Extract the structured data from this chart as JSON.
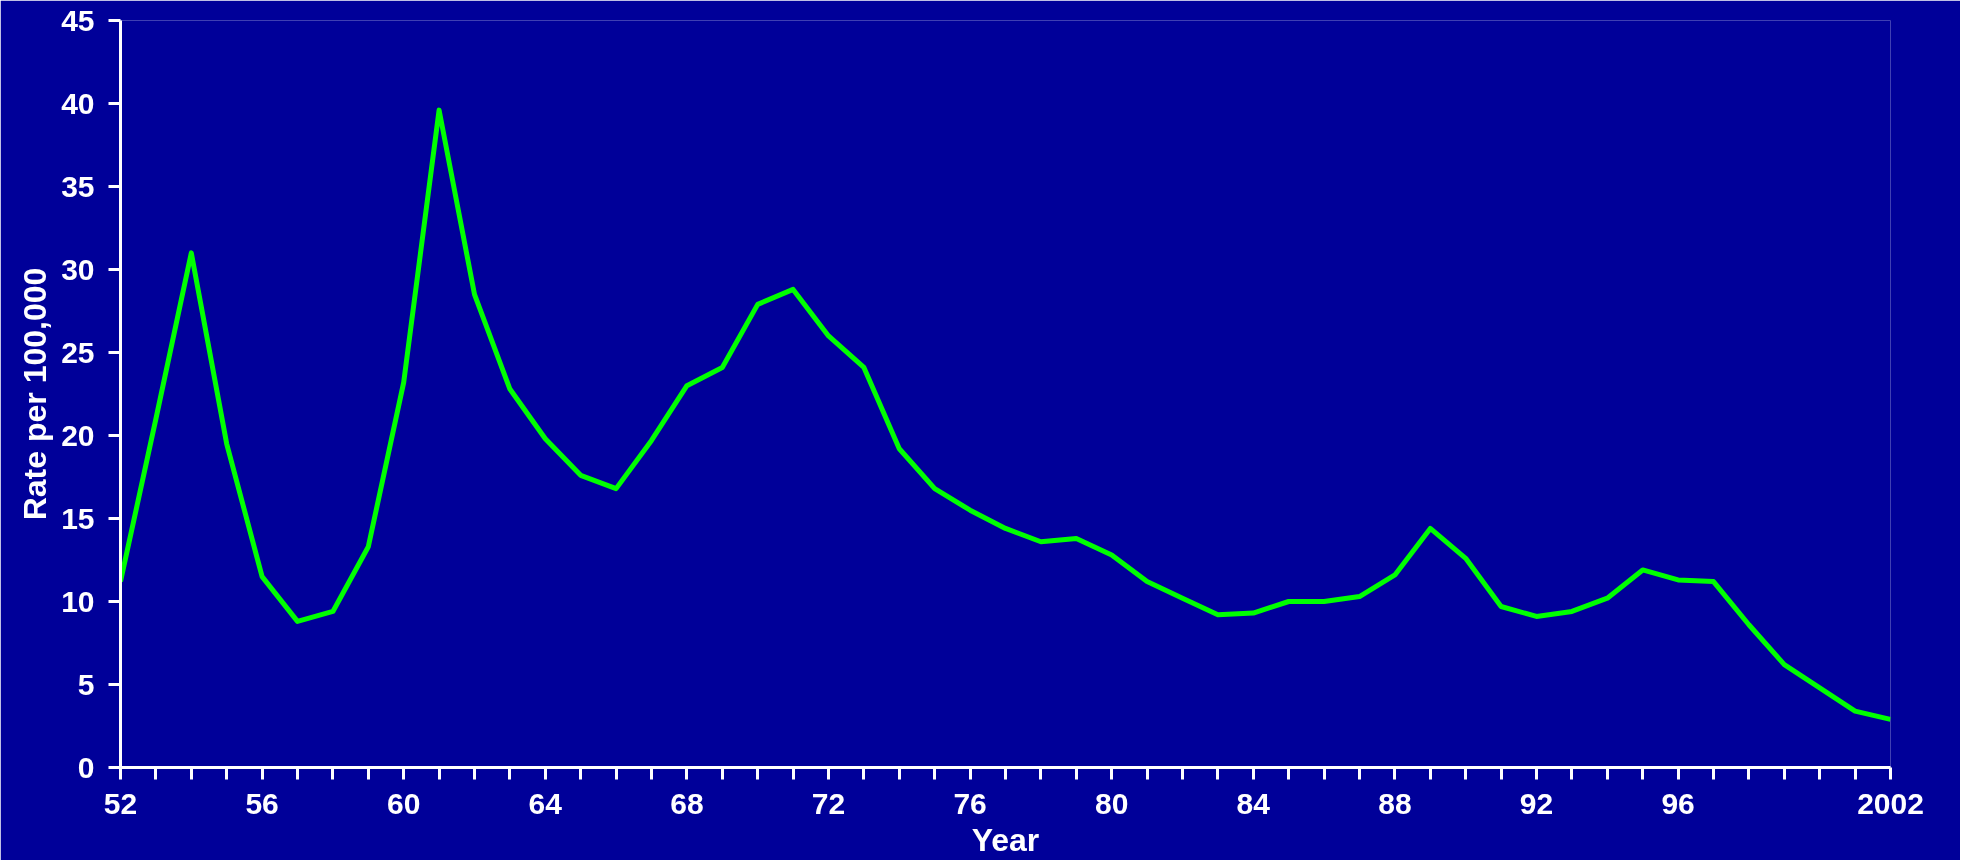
{
  "chart_data": {
    "type": "line",
    "xlabel": "Year",
    "ylabel": "Rate per 100,000",
    "x": [
      1952,
      1953,
      1954,
      1955,
      1956,
      1957,
      1958,
      1959,
      1960,
      1961,
      1962,
      1963,
      1964,
      1965,
      1966,
      1967,
      1968,
      1969,
      1970,
      1971,
      1972,
      1973,
      1974,
      1975,
      1976,
      1977,
      1978,
      1979,
      1980,
      1981,
      1982,
      1983,
      1984,
      1985,
      1986,
      1987,
      1988,
      1989,
      1990,
      1991,
      1992,
      1993,
      1994,
      1995,
      1996,
      1997,
      1998,
      1999,
      2000,
      2001,
      2002
    ],
    "series": [
      {
        "color": "#00ff00",
        "values": [
          11.2,
          21,
          31,
          19.5,
          11.5,
          8.8,
          9.4,
          13.3,
          23.2,
          39.6,
          28.5,
          22.8,
          19.8,
          17.6,
          16.8,
          19.7,
          23,
          24.1,
          27.9,
          28.8,
          26,
          24.1,
          19.2,
          16.8,
          15.5,
          14.4,
          13.6,
          13.8,
          12.8,
          11.2,
          10.2,
          9.2,
          9.3,
          10,
          10,
          10.3,
          11.6,
          14.4,
          12.6,
          9.7,
          9.1,
          9.4,
          10.2,
          11.9,
          11.3,
          11.2,
          8.6,
          6.2,
          4.8,
          3.4,
          2.9
        ]
      }
    ],
    "xlim": [
      1952,
      2002
    ],
    "xticks": [
      {
        "value": 1952,
        "label": "52"
      },
      {
        "value": 1953,
        "label": null
      },
      {
        "value": 1954,
        "label": null
      },
      {
        "value": 1955,
        "label": null
      },
      {
        "value": 1956,
        "label": "56"
      },
      {
        "value": 1957,
        "label": null
      },
      {
        "value": 1958,
        "label": null
      },
      {
        "value": 1959,
        "label": null
      },
      {
        "value": 1960,
        "label": "60"
      },
      {
        "value": 1961,
        "label": null
      },
      {
        "value": 1962,
        "label": null
      },
      {
        "value": 1963,
        "label": null
      },
      {
        "value": 1964,
        "label": "64"
      },
      {
        "value": 1965,
        "label": null
      },
      {
        "value": 1966,
        "label": null
      },
      {
        "value": 1967,
        "label": null
      },
      {
        "value": 1968,
        "label": "68"
      },
      {
        "value": 1969,
        "label": null
      },
      {
        "value": 1970,
        "label": null
      },
      {
        "value": 1971,
        "label": null
      },
      {
        "value": 1972,
        "label": "72"
      },
      {
        "value": 1973,
        "label": null
      },
      {
        "value": 1974,
        "label": null
      },
      {
        "value": 1975,
        "label": null
      },
      {
        "value": 1976,
        "label": "76"
      },
      {
        "value": 1977,
        "label": null
      },
      {
        "value": 1978,
        "label": null
      },
      {
        "value": 1979,
        "label": null
      },
      {
        "value": 1980,
        "label": "80"
      },
      {
        "value": 1981,
        "label": null
      },
      {
        "value": 1982,
        "label": null
      },
      {
        "value": 1983,
        "label": null
      },
      {
        "value": 1984,
        "label": "84"
      },
      {
        "value": 1985,
        "label": null
      },
      {
        "value": 1986,
        "label": null
      },
      {
        "value": 1987,
        "label": null
      },
      {
        "value": 1988,
        "label": "88"
      },
      {
        "value": 1989,
        "label": null
      },
      {
        "value": 1990,
        "label": null
      },
      {
        "value": 1991,
        "label": null
      },
      {
        "value": 1992,
        "label": "92"
      },
      {
        "value": 1993,
        "label": null
      },
      {
        "value": 1994,
        "label": null
      },
      {
        "value": 1995,
        "label": null
      },
      {
        "value": 1996,
        "label": "96"
      },
      {
        "value": 1997,
        "label": null
      },
      {
        "value": 1998,
        "label": null
      },
      {
        "value": 1999,
        "label": null
      },
      {
        "value": 2000,
        "label": null
      },
      {
        "value": 2001,
        "label": null
      },
      {
        "value": 2002,
        "label": "2002"
      }
    ],
    "ylim": [
      0,
      45
    ],
    "yticks": [
      0,
      5,
      10,
      15,
      20,
      25,
      30,
      35,
      40,
      45
    ],
    "grid": false,
    "marker": "none",
    "line_style": "solid"
  }
}
